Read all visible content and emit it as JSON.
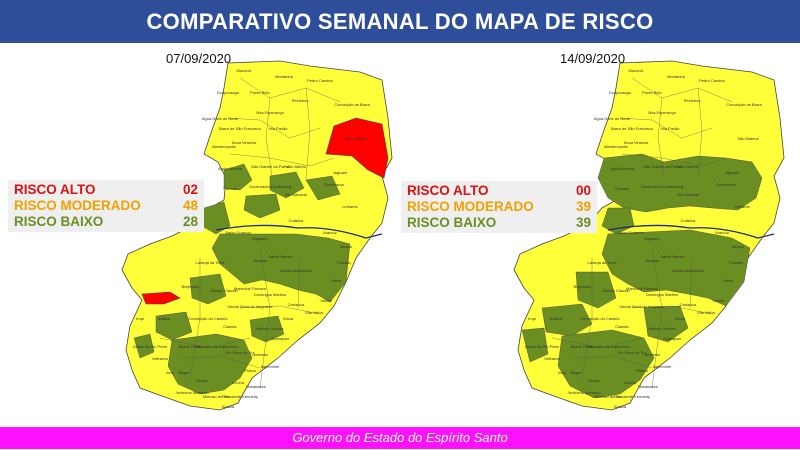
{
  "title": "COMPARATIVO SEMANAL DO MAPA DE RISCO",
  "footer": "Governo do Estado do Espírito Santo",
  "colors": {
    "header_bg": "#2f4e9a",
    "footer_bg": "#ff10ff",
    "risk_high": "#ff0000",
    "risk_moderate": "#ffff3a",
    "risk_low": "#6b8e23",
    "legend_high_text": "#e01010",
    "legend_moderate_text": "#f2a000",
    "legend_low_text": "#6b8e23"
  },
  "panels": [
    {
      "date": "07/09/2020",
      "legend": [
        {
          "label": "RISCO ALTO",
          "value": "02"
        },
        {
          "label": "RISCO MODERADO",
          "value": "48"
        },
        {
          "label": "RISCO BAIXO",
          "value": "28"
        }
      ],
      "cities": [
        "Mucurici",
        "Montanha",
        "Pedro Canário",
        "Ecoporanga",
        "Ponto Belo",
        "Pinheiros",
        "Boa Esperança",
        "Conceição da Barra",
        "São Mateus",
        "Água Doce do Norte",
        "Barra de São Francisco",
        "Vila Pavão",
        "Nova Venécia",
        "Mantenópolis",
        "Águia Branca",
        "São Gabriel da Palha",
        "Vila Valério",
        "Jaguaré",
        "Sooretama",
        "Linhares",
        "Pancas",
        "Governador Lindenberg",
        "Rio Bananal",
        "Colatina",
        "Aracruz",
        "Ibiraçu",
        "Fundão",
        "Serra",
        "Vitória",
        "Vila Velha",
        "Cariacica",
        "Viana",
        "Guarapari",
        "Anchieta",
        "Piúma",
        "Iconha",
        "Alegre",
        "Muqui",
        "Mimoso do Sul",
        "Presidente Kennedy",
        "Apiacá",
        "Castelo",
        "Venda Nova do Imigrante",
        "Domingos Martins",
        "Santa Teresa",
        "Santa Leopoldina",
        "Itarana",
        "Afonso Cláudio",
        "Laranja da Terra",
        "Baixo Guandu",
        "Itaguaçu",
        "Brejetuba",
        "Dores do Rio Preto",
        "Ibitirama",
        "Iúna",
        "Muniz Freire",
        "Conceição do Castelo",
        "Cachoeiro de Itapemirim",
        "Itapemirim",
        "Marataízes",
        "Jerônimo Monteiro",
        "Rio Novo do Sul",
        "Alfredo Chaves",
        "Marechal Floriano",
        "Irupi",
        "Ibatiba"
      ]
    },
    {
      "date": "14/09/2020",
      "legend": [
        {
          "label": "RISCO ALTO",
          "value": "00"
        },
        {
          "label": "RISCO MODERADO",
          "value": "39"
        },
        {
          "label": "RISCO BAIXO",
          "value": "39"
        }
      ],
      "cities": [
        "Mucurici",
        "Montanha",
        "Pedro Canário",
        "Ecoporanga",
        "Ponto Belo",
        "Pinheiros",
        "Boa Esperança",
        "Conceição da Barra",
        "São Mateus",
        "Água Doce do Norte",
        "Barra de São Francisco",
        "Vila Pavão",
        "Nova Venécia",
        "Mantenópolis",
        "Águia Branca",
        "São Gabriel da Palha",
        "Vila Valério",
        "Jaguaré",
        "Sooretama",
        "Linhares",
        "Pancas",
        "Governador Lindenberg",
        "Rio Bananal",
        "Colatina",
        "Aracruz",
        "Ibiraçu",
        "Fundão",
        "Serra",
        "Vitória",
        "Vila Velha",
        "Cariacica",
        "Viana",
        "Guarapari",
        "Anchieta",
        "Piúma",
        "Iconha",
        "Alegre",
        "Muqui",
        "Mimoso do Sul",
        "Presidente Kennedy",
        "Apiacá",
        "Castelo",
        "Venda Nova do Imigrante",
        "Domingos Martins",
        "Santa Teresa",
        "Santa Leopoldina",
        "Itarana",
        "Afonso Cláudio",
        "Laranja da Terra",
        "Baixo Guandu",
        "Itaguaçu",
        "Brejetuba",
        "Dores do Rio Preto",
        "Ibitirama",
        "Iúna",
        "Muniz Freire",
        "Conceição do Castelo",
        "Cachoeiro de Itapemirim",
        "Itapemirim",
        "Marataízes",
        "Jerônimo Monteiro",
        "Rio Novo do Sul",
        "Alfredo Chaves",
        "Marechal Floriano",
        "Irupi",
        "Ibatiba"
      ]
    }
  ]
}
